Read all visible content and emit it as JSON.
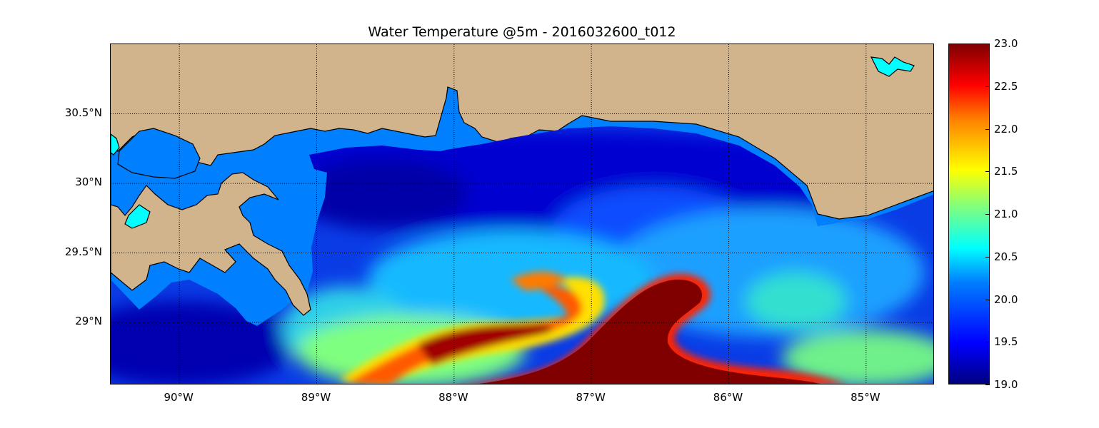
{
  "title": "Water Temperature @5m - 2016032600_t012",
  "map": {
    "lon_range": [
      -90.5,
      -84.5
    ],
    "lat_range": [
      28.55,
      31.0
    ],
    "land_color": "#D2B48C",
    "lake_color": "#00FFFF",
    "ocean_base_color": "#007FFF",
    "lat_labels": [
      {
        "lat": 30.5,
        "text": "30.5°N"
      },
      {
        "lat": 30.0,
        "text": "30°N"
      },
      {
        "lat": 29.5,
        "text": "29.5°N"
      },
      {
        "lat": 29.0,
        "text": "29°N"
      }
    ],
    "lon_labels": [
      {
        "lon": -90,
        "text": "90°W"
      },
      {
        "lon": -89,
        "text": "89°W"
      },
      {
        "lon": -88,
        "text": "88°W"
      },
      {
        "lon": -87,
        "text": "87°W"
      },
      {
        "lon": -86,
        "text": "86°W"
      },
      {
        "lon": -85,
        "text": "85°W"
      }
    ],
    "gridlines": "dotted"
  },
  "colorbar": {
    "min": 19.0,
    "max": 23.0,
    "colormap": "jet",
    "ticks": [
      "19.0",
      "19.5",
      "20.0",
      "20.5",
      "21.0",
      "21.5",
      "22.0",
      "22.5",
      "23.0"
    ]
  }
}
